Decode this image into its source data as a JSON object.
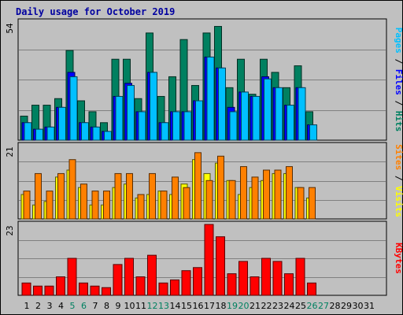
{
  "chart_data": {
    "type": "bar",
    "title": "Daily usage for October 2019",
    "days": [
      "1",
      "2",
      "3",
      "4",
      "5",
      "6",
      "7",
      "8",
      "9",
      "10",
      "11",
      "12",
      "13",
      "14",
      "15",
      "16",
      "17",
      "18",
      "19",
      "20",
      "21",
      "22",
      "23",
      "24",
      "25",
      "26",
      "27",
      "28",
      "29",
      "30",
      "31"
    ],
    "weekend_days": [
      "5",
      "6",
      "12",
      "13",
      "19",
      "20",
      "26",
      "27"
    ],
    "panels": [
      {
        "name": "hits-files-pages",
        "ymax": 54,
        "ymax_label": "54",
        "axis_label": [
          {
            "text": "Pages",
            "color": "#00c0ff"
          },
          {
            "text": " / ",
            "color": "#000000"
          },
          {
            "text": "Files",
            "color": "#0000ff"
          },
          {
            "text": " / ",
            "color": "#000000"
          },
          {
            "text": "Hits",
            "color": "#008060"
          }
        ],
        "series": [
          {
            "name": "Hits",
            "color": "#008060",
            "values": [
              11,
              16,
              16,
              19,
              41,
              18,
              13,
              8,
              37,
              37,
              19,
              49,
              20,
              29,
              46,
              25,
              49,
              52,
              24,
              37,
              21,
              37,
              31,
              24,
              34,
              13,
              0,
              0,
              0,
              0,
              0
            ]
          },
          {
            "name": "Files",
            "color": "#0000ff",
            "values": [
              8,
              5,
              6,
              15,
              31,
              8,
              6,
              4,
              20,
              26,
              13,
              31,
              8,
              13,
              13,
              18,
              38,
              33,
              15,
              22,
              20,
              29,
              24,
              16,
              24,
              7,
              0,
              0,
              0,
              0,
              0
            ]
          },
          {
            "name": "Pages",
            "color": "#00c0ff",
            "values": [
              8,
              5,
              6,
              15,
              29,
              8,
              6,
              4,
              20,
              25,
              13,
              31,
              8,
              13,
              13,
              18,
              38,
              33,
              13,
              22,
              20,
              28,
              24,
              16,
              24,
              7,
              0,
              0,
              0,
              0,
              0
            ]
          }
        ]
      },
      {
        "name": "visits-sites",
        "ymax": 21,
        "ymax_label": "21",
        "axis_label": [
          {
            "text": "Sites",
            "color": "#ff8000"
          },
          {
            "text": " / ",
            "color": "#000000"
          },
          {
            "text": "Visits",
            "color": "#ffff00"
          }
        ],
        "series": [
          {
            "name": "Visits",
            "color": "#ffff00",
            "values": [
              7,
              4,
              5,
              12,
              14,
              9,
              4,
              4,
              9,
              10,
              6,
              7,
              8,
              7,
              10,
              17,
              13,
              16,
              11,
              7,
              9,
              11,
              13,
              13,
              9,
              6,
              0,
              0,
              0,
              0,
              0
            ]
          },
          {
            "name": "Sites",
            "color": "#ff8000",
            "values": [
              8,
              13,
              8,
              13,
              17,
              10,
              8,
              8,
              13,
              13,
              7,
              13,
              8,
              12,
              9,
              19,
              11,
              18,
              11,
              15,
              12,
              14,
              14,
              15,
              9,
              9,
              0,
              0,
              0,
              0,
              0
            ]
          }
        ]
      },
      {
        "name": "kbytes",
        "ymax": 23,
        "ymax_label": "23",
        "axis_label": [
          {
            "text": "KBytes",
            "color": "#ff0000"
          }
        ],
        "series": [
          {
            "name": "KBytes",
            "color": "#ff0000",
            "values": [
              4,
              3,
              3,
              6,
              12,
              4,
              3,
              2.5,
              10,
              12,
              6,
              13,
              4,
              5,
              8,
              9,
              23,
              19,
              7,
              11,
              6,
              12,
              11,
              7,
              12,
              4,
              0,
              0,
              0,
              0,
              0
            ]
          }
        ]
      }
    ]
  }
}
